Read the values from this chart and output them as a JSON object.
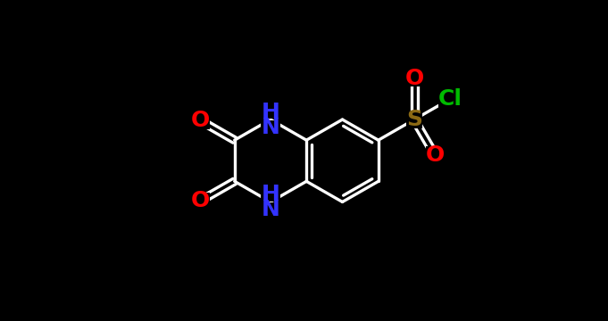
{
  "bg_color": "#000000",
  "bond_color_white": "#ffffff",
  "atom_colors": {
    "O": "#ff0000",
    "N": "#3333ff",
    "S": "#8B6914",
    "Cl": "#00bb00",
    "H": "#ffffff"
  },
  "BL": 0.6,
  "BCX": 3.85,
  "BCY": 1.82,
  "font_size": 18
}
